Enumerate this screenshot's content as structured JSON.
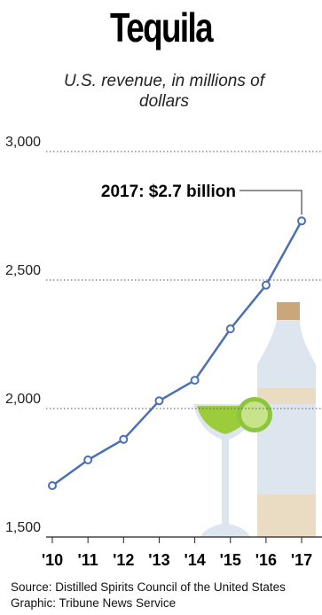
{
  "chart_data": {
    "type": "line",
    "title": "Tequila",
    "subtitle": "U.S. revenue, in millions of dollars",
    "categories": [
      "'10",
      "'11",
      "'12",
      "'13",
      "'14",
      "'15",
      "'16",
      "'17"
    ],
    "values": [
      1700,
      1800,
      1880,
      2030,
      2110,
      2310,
      2480,
      2730
    ],
    "color": "#4a6fb5",
    "ylim": [
      1500,
      3000
    ],
    "yticks": [
      {
        "value": 1500,
        "label": "1,500"
      },
      {
        "value": 2000,
        "label": "2,000"
      },
      {
        "value": 2500,
        "label": "2,500"
      },
      {
        "value": 3000,
        "label": "3,000"
      }
    ],
    "grid": true,
    "annotation": "2017: $2.7 billion",
    "source": [
      "Source: Distilled Spirits Council of the United States",
      "Graphic: Tribune News Service"
    ]
  }
}
